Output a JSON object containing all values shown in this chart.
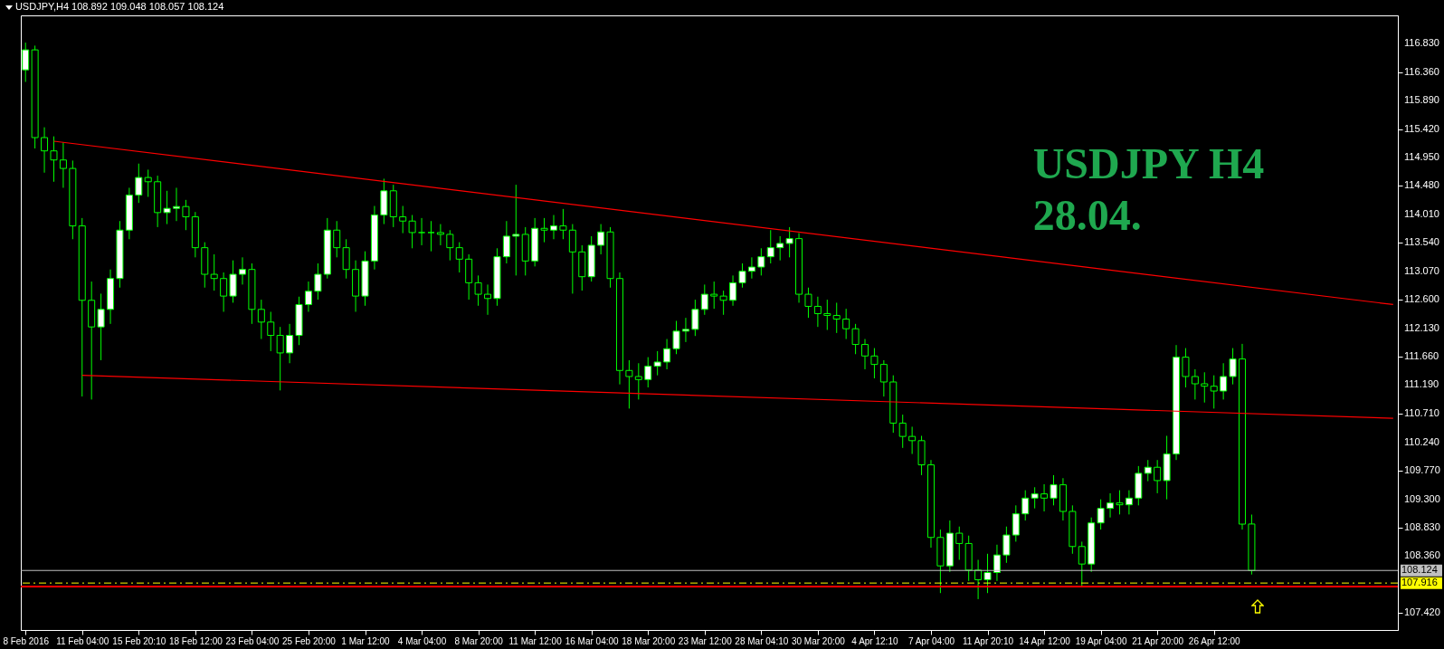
{
  "chart_data": {
    "type": "candlestick",
    "title": "USDJPY,H4  108.892 109.048 108.057 108.124",
    "annotations": [
      "USDJPY H4",
      "28.04."
    ],
    "color": "#00ff00",
    "categories": [
      "8 Feb 2016",
      null,
      null,
      null,
      null,
      null,
      "11 Feb 04:00",
      null,
      null,
      null,
      null,
      null,
      "15 Feb 20:10",
      null,
      null,
      null,
      null,
      null,
      "18 Feb 12:00",
      null,
      null,
      null,
      null,
      null,
      "23 Feb 04:00",
      null,
      null,
      null,
      null,
      null,
      "25 Feb 20:00",
      null,
      null,
      null,
      null,
      null,
      "1 Mar 12:00",
      null,
      null,
      null,
      null,
      null,
      "4 Mar 04:00",
      null,
      null,
      null,
      null,
      null,
      "8 Mar 20:00",
      null,
      null,
      null,
      null,
      null,
      "11 Mar 12:00",
      null,
      null,
      null,
      null,
      null,
      "16 Mar 04:00",
      null,
      null,
      null,
      null,
      null,
      "18 Mar 20:00",
      null,
      null,
      null,
      null,
      null,
      "23 Mar 12:00",
      null,
      null,
      null,
      null,
      null,
      "28 Mar 04:10",
      null,
      null,
      null,
      null,
      null,
      "30 Mar 20:00",
      null,
      null,
      null,
      null,
      null,
      "4 Apr 12:10",
      null,
      null,
      null,
      null,
      null,
      "7 Apr 04:00",
      null,
      null,
      null,
      null,
      null,
      "11 Apr 20:10",
      null,
      null,
      null,
      null,
      null,
      "14 Apr 12:00",
      null,
      null,
      null,
      null,
      null,
      "19 Apr 04:00",
      null,
      null,
      null,
      null,
      null,
      "21 Apr 20:00",
      null,
      null,
      null,
      null,
      null,
      "26 Apr 12:00",
      null,
      null,
      null,
      null,
      null,
      null,
      null,
      null,
      null,
      null,
      null,
      null,
      null,
      null,
      null,
      null,
      null,
      null,
      null
    ],
    "ohlc": [
      [
        116.4,
        116.85,
        116.2,
        116.73
      ],
      [
        116.73,
        116.8,
        115.1,
        115.28
      ],
      [
        115.28,
        115.45,
        114.7,
        115.06
      ],
      [
        115.06,
        115.3,
        114.55,
        114.91
      ],
      [
        114.91,
        115.2,
        114.45,
        114.77
      ],
      [
        114.77,
        114.9,
        113.6,
        113.82
      ],
      [
        113.82,
        113.95,
        111.0,
        112.59
      ],
      [
        112.59,
        112.9,
        110.95,
        112.15
      ],
      [
        112.15,
        112.7,
        111.6,
        112.44
      ],
      [
        112.44,
        113.1,
        112.2,
        112.95
      ],
      [
        112.95,
        113.9,
        112.8,
        113.75
      ],
      [
        113.75,
        114.45,
        113.6,
        114.33
      ],
      [
        114.33,
        114.85,
        114.2,
        114.62
      ],
      [
        114.62,
        114.75,
        114.3,
        114.55
      ],
      [
        114.55,
        114.65,
        113.8,
        114.04
      ],
      [
        114.04,
        114.4,
        113.85,
        114.11
      ],
      [
        114.11,
        114.45,
        113.9,
        114.14
      ],
      [
        114.14,
        114.25,
        113.75,
        113.97
      ],
      [
        113.97,
        114.05,
        113.3,
        113.46
      ],
      [
        113.46,
        113.55,
        112.8,
        113.02
      ],
      [
        113.02,
        113.35,
        112.75,
        112.95
      ],
      [
        112.95,
        113.05,
        112.4,
        112.66
      ],
      [
        112.66,
        113.25,
        112.55,
        113.02
      ],
      [
        113.02,
        113.3,
        112.85,
        113.1
      ],
      [
        113.1,
        113.2,
        112.2,
        112.44
      ],
      [
        112.44,
        112.6,
        111.95,
        112.23
      ],
      [
        112.23,
        112.4,
        111.75,
        112.01
      ],
      [
        112.01,
        112.15,
        111.1,
        111.72
      ],
      [
        111.72,
        112.2,
        111.55,
        112.01
      ],
      [
        112.01,
        112.65,
        111.85,
        112.52
      ],
      [
        112.52,
        112.9,
        112.4,
        112.74
      ],
      [
        112.74,
        113.2,
        112.6,
        113.02
      ],
      [
        113.02,
        113.95,
        112.95,
        113.75
      ],
      [
        113.75,
        113.9,
        113.3,
        113.46
      ],
      [
        113.46,
        113.6,
        112.95,
        113.1
      ],
      [
        113.1,
        113.25,
        112.4,
        112.66
      ],
      [
        112.66,
        113.4,
        112.5,
        113.24
      ],
      [
        113.24,
        114.15,
        113.1,
        114.0
      ],
      [
        114.0,
        114.6,
        113.85,
        114.4
      ],
      [
        114.4,
        114.5,
        113.8,
        113.97
      ],
      [
        113.97,
        114.15,
        113.7,
        113.9
      ],
      [
        113.9,
        114.0,
        113.45,
        113.71
      ],
      [
        113.71,
        113.95,
        113.5,
        113.71
      ],
      [
        113.71,
        113.9,
        113.4,
        113.71
      ],
      [
        113.71,
        113.85,
        113.5,
        113.68
      ],
      [
        113.68,
        113.75,
        113.25,
        113.46
      ],
      [
        113.46,
        113.55,
        113.05,
        113.27
      ],
      [
        113.27,
        113.35,
        112.6,
        112.88
      ],
      [
        112.88,
        113.0,
        112.5,
        112.69
      ],
      [
        112.69,
        112.85,
        112.35,
        112.62
      ],
      [
        112.62,
        113.45,
        112.5,
        113.31
      ],
      [
        113.31,
        113.9,
        113.2,
        113.65
      ],
      [
        113.65,
        114.5,
        113.0,
        113.68
      ],
      [
        113.68,
        113.8,
        113.0,
        113.24
      ],
      [
        113.24,
        113.95,
        113.15,
        113.78
      ],
      [
        113.78,
        113.95,
        113.55,
        113.75
      ],
      [
        113.75,
        114.0,
        113.6,
        113.82
      ],
      [
        113.82,
        114.1,
        113.6,
        113.75
      ],
      [
        113.75,
        113.85,
        112.7,
        113.39
      ],
      [
        113.39,
        113.5,
        112.75,
        112.98
      ],
      [
        112.98,
        113.65,
        112.9,
        113.5
      ],
      [
        113.5,
        113.85,
        113.35,
        113.72
      ],
      [
        113.72,
        113.8,
        112.8,
        112.95
      ],
      [
        112.95,
        113.05,
        111.2,
        111.43
      ],
      [
        111.43,
        111.6,
        110.8,
        111.33
      ],
      [
        111.33,
        111.55,
        110.95,
        111.28
      ],
      [
        111.28,
        111.65,
        111.15,
        111.5
      ],
      [
        111.5,
        111.75,
        111.35,
        111.57
      ],
      [
        111.57,
        111.95,
        111.45,
        111.79
      ],
      [
        111.79,
        112.25,
        111.7,
        112.08
      ],
      [
        112.08,
        112.3,
        111.9,
        112.11
      ],
      [
        112.11,
        112.6,
        112.0,
        112.44
      ],
      [
        112.44,
        112.85,
        112.35,
        112.69
      ],
      [
        112.69,
        112.9,
        112.45,
        112.66
      ],
      [
        112.66,
        112.75,
        112.35,
        112.59
      ],
      [
        112.59,
        113.0,
        112.5,
        112.88
      ],
      [
        112.88,
        113.2,
        112.8,
        113.07
      ],
      [
        113.07,
        113.3,
        112.95,
        113.14
      ],
      [
        113.14,
        113.45,
        113.0,
        113.31
      ],
      [
        113.31,
        113.75,
        113.2,
        113.46
      ],
      [
        113.46,
        113.65,
        113.25,
        113.53
      ],
      [
        113.53,
        113.8,
        113.3,
        113.61
      ],
      [
        113.61,
        113.7,
        112.55,
        112.69
      ],
      [
        112.69,
        112.8,
        112.3,
        112.49
      ],
      [
        112.49,
        112.65,
        112.15,
        112.37
      ],
      [
        112.37,
        112.6,
        112.1,
        112.34
      ],
      [
        112.34,
        112.55,
        112.05,
        112.28
      ],
      [
        112.28,
        112.45,
        111.95,
        112.12
      ],
      [
        112.12,
        112.2,
        111.7,
        111.86
      ],
      [
        111.86,
        111.95,
        111.45,
        111.67
      ],
      [
        111.67,
        111.8,
        111.3,
        111.53
      ],
      [
        111.53,
        111.6,
        111.0,
        111.24
      ],
      [
        111.24,
        111.35,
        110.4,
        110.56
      ],
      [
        110.56,
        110.7,
        110.15,
        110.34
      ],
      [
        110.34,
        110.5,
        110.05,
        110.27
      ],
      [
        110.27,
        110.35,
        109.7,
        109.87
      ],
      [
        109.87,
        109.95,
        108.5,
        108.67
      ],
      [
        108.67,
        108.8,
        107.75,
        108.2
      ],
      [
        108.2,
        108.95,
        108.1,
        108.74
      ],
      [
        108.74,
        108.85,
        108.3,
        108.57
      ],
      [
        108.57,
        108.7,
        107.95,
        108.13
      ],
      [
        108.13,
        108.3,
        107.65,
        107.97
      ],
      [
        107.97,
        108.4,
        107.75,
        108.09
      ],
      [
        108.09,
        108.55,
        107.95,
        108.38
      ],
      [
        108.38,
        108.85,
        108.25,
        108.71
      ],
      [
        108.71,
        109.2,
        108.6,
        109.06
      ],
      [
        109.06,
        109.45,
        108.95,
        109.32
      ],
      [
        109.32,
        109.5,
        109.15,
        109.39
      ],
      [
        109.39,
        109.55,
        109.1,
        109.32
      ],
      [
        109.32,
        109.7,
        109.2,
        109.54
      ],
      [
        109.54,
        109.65,
        108.95,
        109.1
      ],
      [
        109.1,
        109.2,
        108.4,
        108.52
      ],
      [
        108.52,
        108.6,
        107.85,
        108.23
      ],
      [
        108.23,
        109.0,
        108.1,
        108.91
      ],
      [
        108.91,
        109.3,
        108.8,
        109.15
      ],
      [
        109.15,
        109.4,
        109.0,
        109.24
      ],
      [
        109.24,
        109.45,
        109.05,
        109.21
      ],
      [
        109.21,
        109.45,
        109.05,
        109.32
      ],
      [
        109.32,
        109.85,
        109.2,
        109.73
      ],
      [
        109.73,
        109.95,
        109.6,
        109.83
      ],
      [
        109.83,
        109.95,
        109.4,
        109.61
      ],
      [
        109.61,
        110.35,
        109.3,
        110.05
      ],
      [
        110.05,
        111.85,
        109.95,
        111.65
      ],
      [
        111.65,
        111.8,
        111.15,
        111.33
      ],
      [
        111.33,
        111.45,
        110.95,
        111.21
      ],
      [
        111.21,
        111.4,
        110.9,
        111.17
      ],
      [
        111.17,
        111.35,
        110.8,
        111.09
      ],
      [
        111.09,
        111.55,
        110.95,
        111.33
      ],
      [
        111.33,
        111.8,
        111.2,
        111.62
      ],
      [
        111.62,
        111.87,
        108.8,
        108.89
      ],
      [
        108.892,
        109.048,
        108.057,
        108.124
      ],
      null,
      null,
      null,
      null,
      null,
      null,
      null,
      null,
      null,
      null,
      null,
      null,
      null,
      null,
      null
    ],
    "series": [
      {
        "type": "line",
        "color": "#ff0000",
        "values": [
          null,
          null,
          null,
          115.22,
          null,
          null,
          null,
          null,
          null,
          null,
          null,
          null,
          null,
          null,
          null,
          null,
          null,
          null,
          null,
          null,
          null,
          null,
          null,
          null,
          null,
          null,
          null,
          null,
          null,
          null,
          null,
          null,
          null,
          null,
          null,
          null,
          null,
          null,
          null,
          null,
          null,
          null,
          null,
          null,
          null,
          null,
          null,
          null,
          null,
          null,
          null,
          null,
          null,
          null,
          null,
          null,
          null,
          null,
          null,
          null,
          null,
          null,
          null,
          null,
          null,
          null,
          null,
          null,
          null,
          null,
          null,
          null,
          null,
          null,
          null,
          null,
          null,
          null,
          null,
          null,
          null,
          null,
          null,
          null,
          null,
          null,
          null,
          null,
          null,
          null,
          null,
          null,
          null,
          null,
          null,
          null,
          null,
          null,
          null,
          null,
          null,
          null,
          null,
          null,
          null,
          null,
          null,
          null,
          null,
          null,
          null,
          null,
          null,
          null,
          null,
          null,
          null,
          null,
          null,
          null,
          null,
          null,
          null,
          null,
          null,
          null,
          null,
          null,
          null,
          null,
          null,
          null,
          null,
          null,
          null,
          null,
          null,
          null,
          null,
          null,
          null,
          null,
          null,
          null,
          null,
          112.52
        ]
      },
      {
        "type": "line",
        "color": "#ff0000",
        "values": [
          null,
          null,
          null,
          null,
          null,
          null,
          111.35,
          null,
          null,
          null,
          null,
          null,
          null,
          null,
          null,
          null,
          null,
          null,
          null,
          null,
          null,
          null,
          null,
          null,
          null,
          null,
          null,
          null,
          null,
          null,
          null,
          null,
          null,
          null,
          null,
          null,
          null,
          null,
          null,
          null,
          null,
          null,
          null,
          null,
          null,
          null,
          null,
          null,
          null,
          null,
          null,
          null,
          null,
          null,
          null,
          null,
          null,
          null,
          null,
          null,
          null,
          null,
          null,
          null,
          null,
          null,
          null,
          null,
          null,
          null,
          null,
          null,
          null,
          null,
          null,
          null,
          null,
          null,
          null,
          null,
          null,
          null,
          null,
          null,
          null,
          null,
          null,
          null,
          null,
          null,
          null,
          null,
          null,
          null,
          null,
          null,
          null,
          null,
          null,
          null,
          null,
          null,
          null,
          null,
          null,
          null,
          null,
          null,
          null,
          null,
          null,
          null,
          null,
          null,
          null,
          null,
          null,
          null,
          null,
          null,
          null,
          null,
          null,
          null,
          null,
          null,
          null,
          null,
          null,
          null,
          null,
          null,
          null,
          null,
          null,
          null,
          null,
          null,
          null,
          null,
          null,
          null,
          null,
          null,
          null,
          110.64
        ]
      }
    ],
    "ref_lines": [
      {
        "axis": "y",
        "value": 108.124,
        "label": "108.124",
        "color": "#c0c0c0"
      },
      {
        "axis": "y",
        "value": 107.916,
        "label": "107.916",
        "color": "#ffff00",
        "line_style": "dashed"
      },
      {
        "axis": "y",
        "value": 107.86,
        "color": "#ff0000"
      }
    ],
    "ylim": [
      107.14,
      117.3
    ],
    "yticks": [
      {
        "value": 107.42,
        "label": "107.420"
      },
      {
        "value": 108.36,
        "label": "108.360"
      },
      {
        "value": 108.83,
        "label": "108.830"
      },
      {
        "value": 109.3,
        "label": "109.300"
      },
      {
        "value": 109.77,
        "label": "109.770"
      },
      {
        "value": 110.24,
        "label": "110.240"
      },
      {
        "value": 110.71,
        "label": "110.710"
      },
      {
        "value": 111.19,
        "label": "111.190"
      },
      {
        "value": 111.66,
        "label": "111.660"
      },
      {
        "value": 112.13,
        "label": "112.130"
      },
      {
        "value": 112.6,
        "label": "112.600"
      },
      {
        "value": 113.07,
        "label": "113.070"
      },
      {
        "value": 113.54,
        "label": "113.540"
      },
      {
        "value": 114.01,
        "label": "114.010"
      },
      {
        "value": 114.48,
        "label": "114.480"
      },
      {
        "value": 114.95,
        "label": "114.950"
      },
      {
        "value": 115.42,
        "label": "115.420"
      },
      {
        "value": 115.89,
        "label": "115.890"
      },
      {
        "value": 116.36,
        "label": "116.360"
      },
      {
        "value": 116.83,
        "label": "116.830"
      }
    ]
  }
}
